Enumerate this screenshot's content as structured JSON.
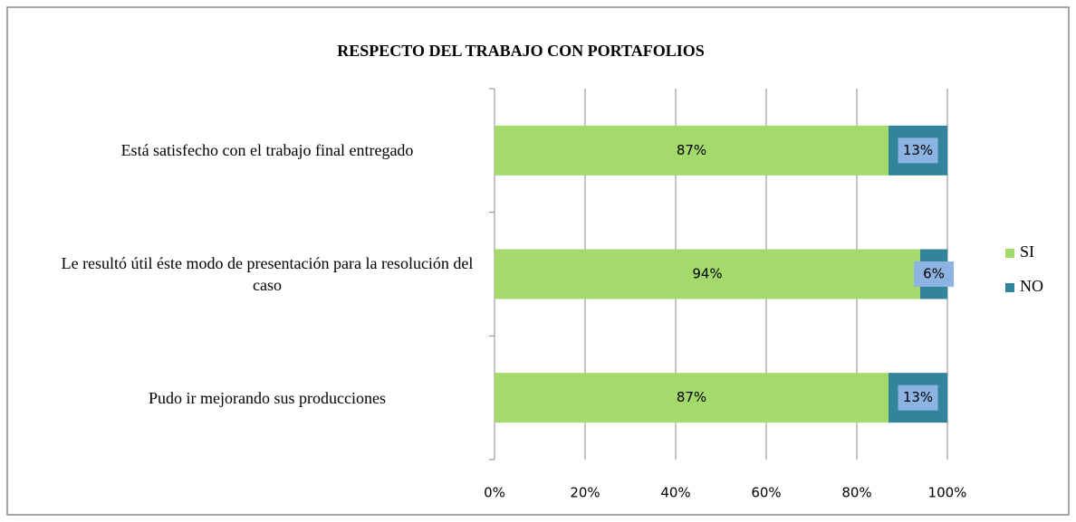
{
  "chart_data": {
    "type": "stacked_barh",
    "title": "RESPECTO DEL TRABAJO CON PORTAFOLIOS",
    "categories": [
      "Está satisfecho con el trabajo final entregado",
      "Le resultó útil éste modo de presentación para la resolución del caso",
      "Pudo ir mejorando sus producciones"
    ],
    "series": [
      {
        "name": "SI",
        "color": "#a4d96c",
        "values": [
          87,
          94,
          87
        ],
        "value_labels": [
          "87%",
          "94%",
          "87%"
        ]
      },
      {
        "name": "NO",
        "color": "#31849b",
        "values": [
          13,
          6,
          13
        ],
        "value_labels": [
          "13%",
          "6%",
          "13%"
        ]
      }
    ],
    "xlim": [
      0,
      100
    ],
    "xticks": [
      {
        "value": 0,
        "label": "0%"
      },
      {
        "value": 20,
        "label": "20%"
      },
      {
        "value": 40,
        "label": "40%"
      },
      {
        "value": 60,
        "label": "60%"
      },
      {
        "value": 80,
        "label": "80%"
      },
      {
        "value": 100,
        "label": "100%"
      }
    ],
    "grid": true,
    "legend": "right"
  }
}
